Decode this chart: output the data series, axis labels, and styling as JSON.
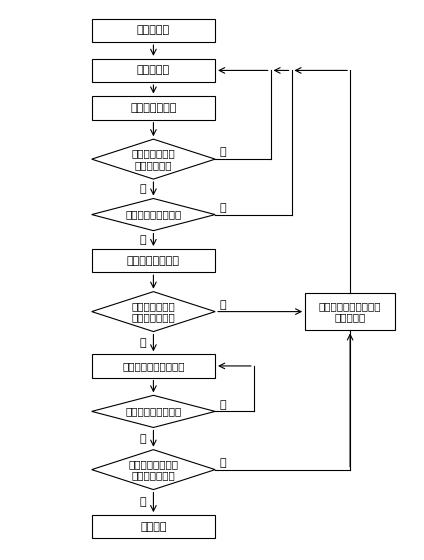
{
  "bg_color": "#ffffff",
  "nodes": [
    {
      "id": "init",
      "type": "rect",
      "label": "参数初始化"
    },
    {
      "id": "collect",
      "type": "rect",
      "label": "采集第一帧"
    },
    {
      "id": "detect",
      "type": "rect",
      "label": "当前帧皮肤检测"
    },
    {
      "id": "q1",
      "type": "diamond",
      "label": "皮肤最大团块面\n积超过阈值？"
    },
    {
      "id": "q2",
      "type": "diamond",
      "label": "读卡器有插卡动作？"
    },
    {
      "id": "track",
      "type": "rect",
      "label": "皮肤团块跟踪检测"
    },
    {
      "id": "q3",
      "type": "diamond",
      "label": "皮肤团块运动到\n屏幕左侧消失？"
    },
    {
      "id": "cinc",
      "type": "rect",
      "label": "用户切换帧计数器自增"
    },
    {
      "id": "q4",
      "type": "diamond",
      "label": "读卡器有取卡动作？"
    },
    {
      "id": "q5",
      "type": "diamond",
      "label": "用户切换帧计数器\n数值小于阈值？"
    },
    {
      "id": "alarm",
      "type": "rect",
      "label": "调包报警"
    },
    {
      "id": "reset",
      "type": "rect",
      "label": "用户切换帧计数器初始\n化为最大值"
    }
  ]
}
